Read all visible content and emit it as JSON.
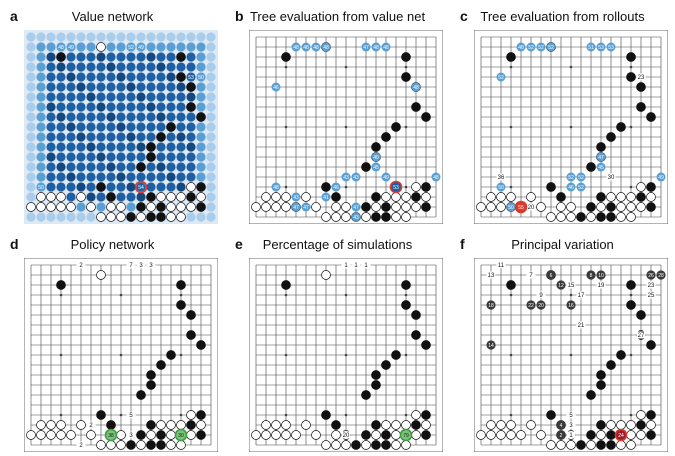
{
  "figure": {
    "panels": [
      {
        "id": "a",
        "label": "a",
        "title": "Value network",
        "mode": "value"
      },
      {
        "id": "b",
        "label": "b",
        "title": "Tree evaluation from value net",
        "mode": "treeval"
      },
      {
        "id": "c",
        "label": "c",
        "title": "Tree evaluation from rollouts",
        "mode": "rollout"
      },
      {
        "id": "d",
        "label": "d",
        "title": "Policy network",
        "mode": "policy"
      },
      {
        "id": "e",
        "label": "e",
        "title": "Percentage of simulations",
        "mode": "sims"
      },
      {
        "id": "f",
        "label": "f",
        "title": "Principal variation",
        "mode": "pv"
      }
    ],
    "colors": {
      "board_bg": "#ffffff",
      "grid": "#444444",
      "black": "#111111",
      "white": "#ffffff",
      "blue_light": "#a9cdeb",
      "blue_mid": "#5a9fd4",
      "blue_dark": "#1f5fa3",
      "blue_deep": "#14487f",
      "selected_ring": "#d93a2b",
      "green_ring": "#3d9a3d",
      "green_fill": "#7bc47b"
    },
    "position": {
      "black_stones": [
        [
          2,
          3
        ],
        [
          2,
          15
        ],
        [
          4,
          15
        ],
        [
          5,
          16
        ],
        [
          7,
          16
        ],
        [
          8,
          17
        ],
        [
          9,
          14
        ],
        [
          10,
          13
        ],
        [
          11,
          12
        ],
        [
          12,
          12
        ],
        [
          13,
          11
        ],
        [
          15,
          7
        ],
        [
          16,
          8
        ],
        [
          15,
          17
        ],
        [
          16,
          16
        ],
        [
          17,
          17
        ],
        [
          16,
          12
        ],
        [
          17,
          11
        ],
        [
          17,
          13
        ],
        [
          18,
          12
        ],
        [
          18,
          13
        ],
        [
          18,
          10
        ]
      ],
      "white_stones": [
        [
          1,
          7
        ],
        [
          16,
          1
        ],
        [
          16,
          2
        ],
        [
          16,
          3
        ],
        [
          17,
          0
        ],
        [
          17,
          1
        ],
        [
          17,
          2
        ],
        [
          17,
          3
        ],
        [
          17,
          4
        ],
        [
          16,
          5
        ],
        [
          17,
          6
        ],
        [
          17,
          8
        ],
        [
          17,
          9
        ],
        [
          18,
          7
        ],
        [
          18,
          8
        ],
        [
          18,
          9
        ],
        [
          18,
          11
        ],
        [
          18,
          14
        ],
        [
          18,
          15
        ],
        [
          16,
          13
        ],
        [
          17,
          12
        ],
        [
          16,
          14
        ],
        [
          17,
          14
        ],
        [
          17,
          15
        ],
        [
          16,
          15
        ],
        [
          15,
          16
        ],
        [
          16,
          17
        ],
        [
          17,
          16
        ]
      ]
    },
    "value_grid": {
      "highlight": [
        15,
        11
      ],
      "labels": [
        {
          "r": 1,
          "c": 3,
          "t": "48"
        },
        {
          "r": 1,
          "c": 4,
          "t": "49"
        },
        {
          "r": 1,
          "c": 10,
          "t": "52"
        },
        {
          "r": 1,
          "c": 11,
          "t": "49"
        },
        {
          "r": 4,
          "c": 16,
          "t": "53"
        },
        {
          "r": 4,
          "c": 17,
          "t": "50"
        },
        {
          "r": 15,
          "c": 1,
          "t": "50"
        },
        {
          "r": 15,
          "c": 11,
          "t": "54"
        }
      ]
    },
    "treeval": {
      "labels": [
        {
          "r": 1,
          "c": 4,
          "t": "48"
        },
        {
          "r": 1,
          "c": 5,
          "t": "48"
        },
        {
          "r": 1,
          "c": 6,
          "t": "48"
        },
        {
          "r": 1,
          "c": 7,
          "t": "48"
        },
        {
          "r": 1,
          "c": 11,
          "t": "47"
        },
        {
          "r": 1,
          "c": 12,
          "t": "48"
        },
        {
          "r": 1,
          "c": 13,
          "t": "48"
        },
        {
          "r": 5,
          "c": 2,
          "t": "46"
        },
        {
          "r": 5,
          "c": 16,
          "t": "48"
        },
        {
          "r": 12,
          "c": 12,
          "t": "40"
        },
        {
          "r": 13,
          "c": 12,
          "t": "45"
        },
        {
          "r": 14,
          "c": 9,
          "t": "43"
        },
        {
          "r": 14,
          "c": 10,
          "t": "43"
        },
        {
          "r": 14,
          "c": 13,
          "t": "49"
        },
        {
          "r": 14,
          "c": 18,
          "t": "48"
        },
        {
          "r": 15,
          "c": 2,
          "t": "48"
        },
        {
          "r": 15,
          "c": 8,
          "t": "46"
        },
        {
          "r": 16,
          "c": 4,
          "t": "43"
        },
        {
          "r": 17,
          "c": 4,
          "t": "47"
        },
        {
          "r": 17,
          "c": 5,
          "t": "47"
        },
        {
          "r": 16,
          "c": 7,
          "t": "41"
        },
        {
          "r": 17,
          "c": 10,
          "t": "47"
        },
        {
          "r": 18,
          "c": 10,
          "t": "43"
        }
      ],
      "selected": {
        "r": 15,
        "c": 14,
        "t": "53"
      }
    },
    "rollout": {
      "labels": [
        {
          "r": 1,
          "c": 4,
          "t": "48"
        },
        {
          "r": 1,
          "c": 5,
          "t": "52"
        },
        {
          "r": 1,
          "c": 6,
          "t": "52"
        },
        {
          "r": 1,
          "c": 7,
          "t": "52"
        },
        {
          "r": 1,
          "c": 11,
          "t": "51"
        },
        {
          "r": 1,
          "c": 12,
          "t": "53"
        },
        {
          "r": 1,
          "c": 13,
          "t": "53"
        },
        {
          "r": 4,
          "c": 2,
          "t": "52"
        },
        {
          "r": 12,
          "c": 12,
          "t": "47"
        },
        {
          "r": 13,
          "c": 12,
          "t": "45"
        },
        {
          "r": 14,
          "c": 9,
          "t": "52"
        },
        {
          "r": 14,
          "c": 10,
          "t": "52"
        },
        {
          "r": 15,
          "c": 9,
          "t": "46"
        },
        {
          "r": 15,
          "c": 10,
          "t": "52"
        },
        {
          "r": 14,
          "c": 18,
          "t": "49"
        },
        {
          "r": 15,
          "c": 2,
          "t": "50"
        },
        {
          "r": 17,
          "c": 3,
          "t": "50"
        }
      ],
      "plain": [
        {
          "r": 4,
          "c": 16,
          "t": "23"
        },
        {
          "r": 14,
          "c": 2,
          "t": "36"
        },
        {
          "r": 14,
          "c": 13,
          "t": "30"
        },
        {
          "r": 17,
          "c": 5,
          "t": "20"
        }
      ],
      "selected": {
        "r": 17,
        "c": 4,
        "t": "55"
      }
    },
    "policy": {
      "plain": [
        {
          "r": 0,
          "c": 5,
          "t": "2"
        },
        {
          "r": 0,
          "c": 10,
          "t": "7"
        },
        {
          "r": 0,
          "c": 11,
          "t": "3"
        },
        {
          "r": 0,
          "c": 12,
          "t": "3"
        },
        {
          "r": 15,
          "c": 10,
          "t": "5"
        },
        {
          "r": 16,
          "c": 6,
          "t": "2"
        },
        {
          "r": 17,
          "c": 10,
          "t": "3"
        },
        {
          "r": 18,
          "c": 5,
          "t": "2"
        }
      ],
      "green": [
        {
          "r": 17,
          "c": 8,
          "t": "38"
        },
        {
          "r": 17,
          "c": 15,
          "t": "30"
        }
      ]
    },
    "sims": {
      "plain": [
        {
          "r": 0,
          "c": 9,
          "t": "1"
        },
        {
          "r": 0,
          "c": 10,
          "t": "1"
        },
        {
          "r": 0,
          "c": 11,
          "t": "1"
        },
        {
          "r": 17,
          "c": 9,
          "t": "20"
        }
      ],
      "green": [
        {
          "r": 17,
          "c": 15,
          "t": "79"
        }
      ]
    },
    "pv": {
      "plain": [
        {
          "r": 0,
          "c": 2,
          "t": "11"
        },
        {
          "r": 1,
          "c": 1,
          "t": "13"
        },
        {
          "r": 1,
          "c": 5,
          "t": "7"
        },
        {
          "r": 2,
          "c": 9,
          "t": "15"
        },
        {
          "r": 2,
          "c": 12,
          "t": "19"
        },
        {
          "r": 3,
          "c": 6,
          "t": "9"
        },
        {
          "r": 3,
          "c": 10,
          "t": "17"
        },
        {
          "r": 6,
          "c": 10,
          "t": "21"
        },
        {
          "r": 7,
          "c": 16,
          "t": "27"
        },
        {
          "r": 2,
          "c": 17,
          "t": "23"
        },
        {
          "r": 3,
          "c": 17,
          "t": "25"
        },
        {
          "r": 15,
          "c": 9,
          "t": "5"
        },
        {
          "r": 16,
          "c": 9,
          "t": "3"
        },
        {
          "r": 17,
          "c": 9,
          "t": "1"
        }
      ],
      "black_numbered": [
        {
          "r": 1,
          "c": 7,
          "t": "6"
        },
        {
          "r": 1,
          "c": 11,
          "t": "8"
        },
        {
          "r": 1,
          "c": 12,
          "t": "10"
        },
        {
          "r": 1,
          "c": 17,
          "t": "26"
        },
        {
          "r": 1,
          "c": 18,
          "t": "28"
        },
        {
          "r": 2,
          "c": 8,
          "t": "12"
        },
        {
          "r": 4,
          "c": 1,
          "t": "18"
        },
        {
          "r": 4,
          "c": 5,
          "t": "22"
        },
        {
          "r": 4,
          "c": 6,
          "t": "20"
        },
        {
          "r": 4,
          "c": 9,
          "t": "16"
        },
        {
          "r": 8,
          "c": 1,
          "t": "14"
        },
        {
          "r": 16,
          "c": 8,
          "t": "4"
        },
        {
          "r": 17,
          "c": 8,
          "t": "2"
        }
      ],
      "selected": {
        "r": 17,
        "c": 14,
        "t": "24"
      }
    }
  }
}
